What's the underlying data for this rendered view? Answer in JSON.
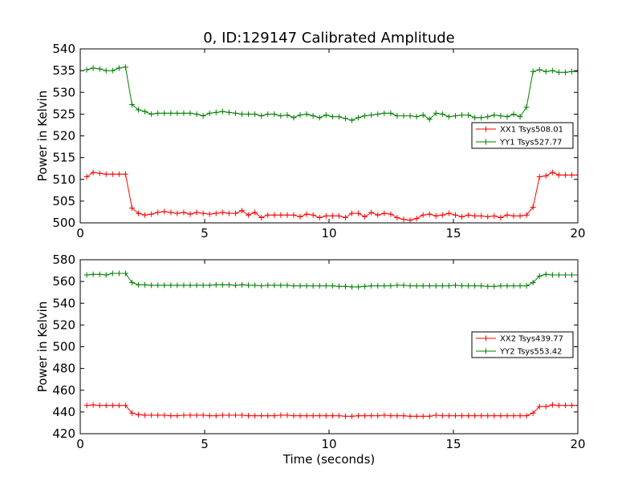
{
  "chart_data": [
    {
      "type": "line",
      "title": "0, ID:129147 Calibrated Amplitude",
      "xlabel": "",
      "ylabel": "Power in Kelvin",
      "xlim": [
        0,
        20
      ],
      "ylim": [
        500,
        540
      ],
      "xticks": [
        0,
        5,
        10,
        15,
        20
      ],
      "yticks": [
        500,
        505,
        510,
        515,
        520,
        525,
        530,
        535,
        540
      ],
      "grid": false,
      "legend_position": "center-right",
      "x": [
        0.26,
        0.52,
        0.78,
        1.04,
        1.3,
        1.56,
        1.82,
        2.08,
        2.34,
        2.6,
        2.86,
        3.12,
        3.38,
        3.64,
        3.9,
        4.16,
        4.42,
        4.68,
        4.94,
        5.2,
        5.46,
        5.72,
        5.98,
        6.24,
        6.5,
        6.76,
        7.02,
        7.28,
        7.54,
        7.8,
        8.06,
        8.32,
        8.58,
        8.84,
        9.1,
        9.36,
        9.62,
        9.88,
        10.14,
        10.4,
        10.66,
        10.92,
        11.18,
        11.44,
        11.7,
        11.96,
        12.22,
        12.48,
        12.74,
        13.0,
        13.26,
        13.52,
        13.78,
        14.04,
        14.3,
        14.56,
        14.82,
        15.08,
        15.34,
        15.6,
        15.86,
        16.12,
        16.38,
        16.64,
        16.9,
        17.16,
        17.42,
        17.68,
        17.94,
        18.2,
        18.46,
        18.72,
        18.98,
        19.24,
        19.5,
        19.76,
        20.02
      ],
      "series": [
        {
          "name": "XX1 Tsys508.01",
          "color": "#ff0000",
          "values": [
            510.6,
            511.6,
            511.4,
            511.2,
            511.2,
            511.2,
            511.2,
            503.4,
            502.2,
            501.8,
            502.0,
            502.4,
            502.6,
            502.4,
            502.2,
            502.4,
            502.0,
            502.4,
            502.2,
            502.0,
            502.2,
            502.4,
            502.2,
            502.2,
            502.8,
            501.8,
            502.4,
            501.2,
            501.8,
            501.8,
            501.8,
            501.8,
            501.8,
            501.4,
            502.0,
            501.8,
            501.2,
            501.6,
            501.6,
            501.6,
            501.2,
            502.2,
            502.2,
            501.4,
            502.4,
            501.8,
            502.2,
            502.0,
            501.2,
            500.8,
            500.6,
            501.0,
            501.8,
            502.0,
            501.6,
            501.8,
            502.2,
            501.8,
            501.4,
            501.8,
            501.6,
            501.6,
            501.4,
            501.6,
            501.2,
            501.8,
            501.6,
            501.6,
            501.8,
            503.6,
            510.6,
            510.8,
            511.6,
            511.0,
            511.0,
            511.0,
            511.0
          ]
        },
        {
          "name": "YY1 Tsys527.77",
          "color": "#007f00",
          "values": [
            535.2,
            535.6,
            535.4,
            535.0,
            535.0,
            535.6,
            535.8,
            527.2,
            526.0,
            525.6,
            525.0,
            525.2,
            525.2,
            525.2,
            525.2,
            525.2,
            525.2,
            525.0,
            524.6,
            525.2,
            525.4,
            525.6,
            525.4,
            525.2,
            525.0,
            525.0,
            525.0,
            524.6,
            525.0,
            525.0,
            524.6,
            524.8,
            524.2,
            524.8,
            525.0,
            524.6,
            524.2,
            524.8,
            524.4,
            524.4,
            524.0,
            523.6,
            524.2,
            524.6,
            524.8,
            525.0,
            525.2,
            525.2,
            524.6,
            524.6,
            524.6,
            524.4,
            524.8,
            523.8,
            525.2,
            525.0,
            524.4,
            524.6,
            524.8,
            524.8,
            524.2,
            524.2,
            524.4,
            524.8,
            524.6,
            524.4,
            525.0,
            524.4,
            526.6,
            534.8,
            535.2,
            534.8,
            535.0,
            534.6,
            534.6,
            534.8,
            534.8
          ]
        }
      ]
    },
    {
      "type": "line",
      "title": "",
      "xlabel": "Time (seconds)",
      "ylabel": "Power in Kelvin",
      "xlim": [
        0,
        20
      ],
      "ylim": [
        420,
        580
      ],
      "xticks": [
        0,
        5,
        10,
        15,
        20
      ],
      "yticks": [
        420,
        440,
        460,
        480,
        500,
        520,
        540,
        560,
        580
      ],
      "grid": false,
      "legend_position": "center-right",
      "x": [
        0.26,
        0.52,
        0.78,
        1.04,
        1.3,
        1.56,
        1.82,
        2.08,
        2.34,
        2.6,
        2.86,
        3.12,
        3.38,
        3.64,
        3.9,
        4.16,
        4.42,
        4.68,
        4.94,
        5.2,
        5.46,
        5.72,
        5.98,
        6.24,
        6.5,
        6.76,
        7.02,
        7.28,
        7.54,
        7.8,
        8.06,
        8.32,
        8.58,
        8.84,
        9.1,
        9.36,
        9.62,
        9.88,
        10.14,
        10.4,
        10.66,
        10.92,
        11.18,
        11.44,
        11.7,
        11.96,
        12.22,
        12.48,
        12.74,
        13.0,
        13.26,
        13.52,
        13.78,
        14.04,
        14.3,
        14.56,
        14.82,
        15.08,
        15.34,
        15.6,
        15.86,
        16.12,
        16.38,
        16.64,
        16.9,
        17.16,
        17.42,
        17.68,
        17.94,
        18.2,
        18.46,
        18.72,
        18.98,
        19.24,
        19.5,
        19.76,
        20.02
      ],
      "series": [
        {
          "name": "XX2 Tsys439.77",
          "color": "#ff0000",
          "values": [
            446,
            446.5,
            446,
            446,
            446,
            446,
            446,
            439,
            437.5,
            437,
            437,
            437,
            437,
            436.5,
            436.5,
            437,
            437,
            437,
            437,
            436.5,
            436.5,
            437,
            437,
            437,
            437,
            436.5,
            436.5,
            436.5,
            436.5,
            436.5,
            437,
            437,
            436.5,
            436.5,
            436.5,
            436.5,
            436.5,
            436.5,
            436.5,
            436.5,
            436,
            436,
            436.5,
            436.5,
            436.5,
            436.5,
            437,
            436.5,
            436.5,
            436.5,
            436,
            436,
            436,
            436,
            437,
            436.5,
            436.5,
            436.5,
            436.5,
            436.5,
            436.5,
            436.5,
            436.5,
            436.5,
            436.5,
            436.5,
            436.5,
            436.5,
            436.5,
            439,
            445,
            445,
            446.5,
            446,
            446,
            446,
            446
          ]
        },
        {
          "name": "YY2 Tsys553.42",
          "color": "#007f00",
          "values": [
            566,
            566.5,
            566.5,
            566,
            567.5,
            567.5,
            567.5,
            559,
            557,
            557,
            556.5,
            556.5,
            556.5,
            556.5,
            556.5,
            556.5,
            556.5,
            556.5,
            556.5,
            556.5,
            557,
            557,
            557,
            556.5,
            557,
            556.5,
            556.5,
            556,
            556.5,
            556.5,
            556.5,
            556.5,
            556,
            556,
            556,
            556,
            556,
            556,
            556,
            555.5,
            555.5,
            555,
            555,
            555.5,
            556,
            556,
            556,
            556,
            556.5,
            556.5,
            556,
            556,
            556,
            556,
            556,
            556,
            556,
            556.5,
            556,
            556,
            556,
            556,
            555.5,
            555.5,
            556,
            556,
            556,
            556,
            556,
            559,
            565,
            566.5,
            566,
            566,
            566,
            566,
            566
          ]
        }
      ]
    }
  ]
}
